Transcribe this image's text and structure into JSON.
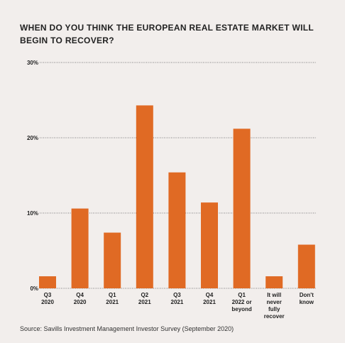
{
  "chart_data": {
    "type": "bar",
    "title": "WHEN DO YOU THINK THE EUROPEAN REAL ESTATE MARKET WILL BEGIN TO RECOVER?",
    "categories": [
      [
        "Q3",
        "2020"
      ],
      [
        "Q4",
        "2020"
      ],
      [
        "Q1",
        "2021"
      ],
      [
        "Q2",
        "2021"
      ],
      [
        "Q3",
        "2021"
      ],
      [
        "Q4",
        "2021"
      ],
      [
        "Q1",
        "2022 or",
        "beyond"
      ],
      [
        "It will",
        "never",
        "fully",
        "recover"
      ],
      [
        "Don't",
        "know"
      ]
    ],
    "values": [
      1.6,
      10.6,
      7.4,
      24.3,
      15.4,
      11.4,
      21.2,
      1.6,
      5.8
    ],
    "ylim": [
      0,
      30
    ],
    "yticks": [
      "0%",
      "10%",
      "20%",
      "30%"
    ],
    "ytick_values": [
      0,
      10,
      20,
      30
    ],
    "bar_color": "#e06a24",
    "grid": "dotted"
  },
  "source": "Source: Savills Investment Management Investor Survey (September 2020)"
}
